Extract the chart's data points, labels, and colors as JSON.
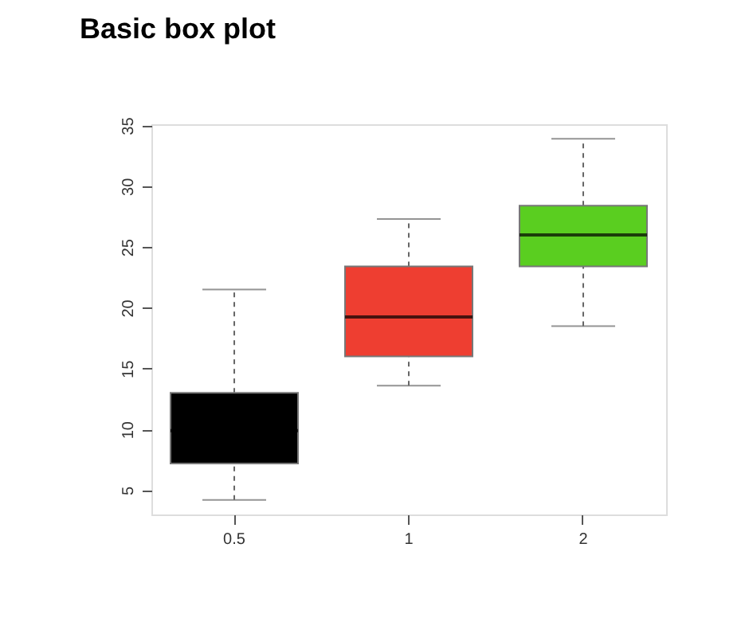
{
  "chart_data": {
    "type": "box",
    "title": "Basic box plot",
    "categories": [
      "0.5",
      "1",
      "2"
    ],
    "boxes": [
      {
        "low": 4.2,
        "q1": 7.2,
        "median": 9.9,
        "q3": 13.0,
        "high": 21.5
      },
      {
        "low": 13.6,
        "q1": 16.0,
        "median": 19.25,
        "q3": 23.4,
        "high": 27.3
      },
      {
        "low": 18.5,
        "q1": 23.4,
        "median": 26.0,
        "q3": 28.4,
        "high": 33.9
      }
    ],
    "colors": [
      "#000000",
      "#ee3e31",
      "#5ace20"
    ],
    "ylim": [
      3,
      35.1
    ],
    "yticks": [
      5,
      10,
      15,
      20,
      25,
      30,
      35
    ]
  }
}
